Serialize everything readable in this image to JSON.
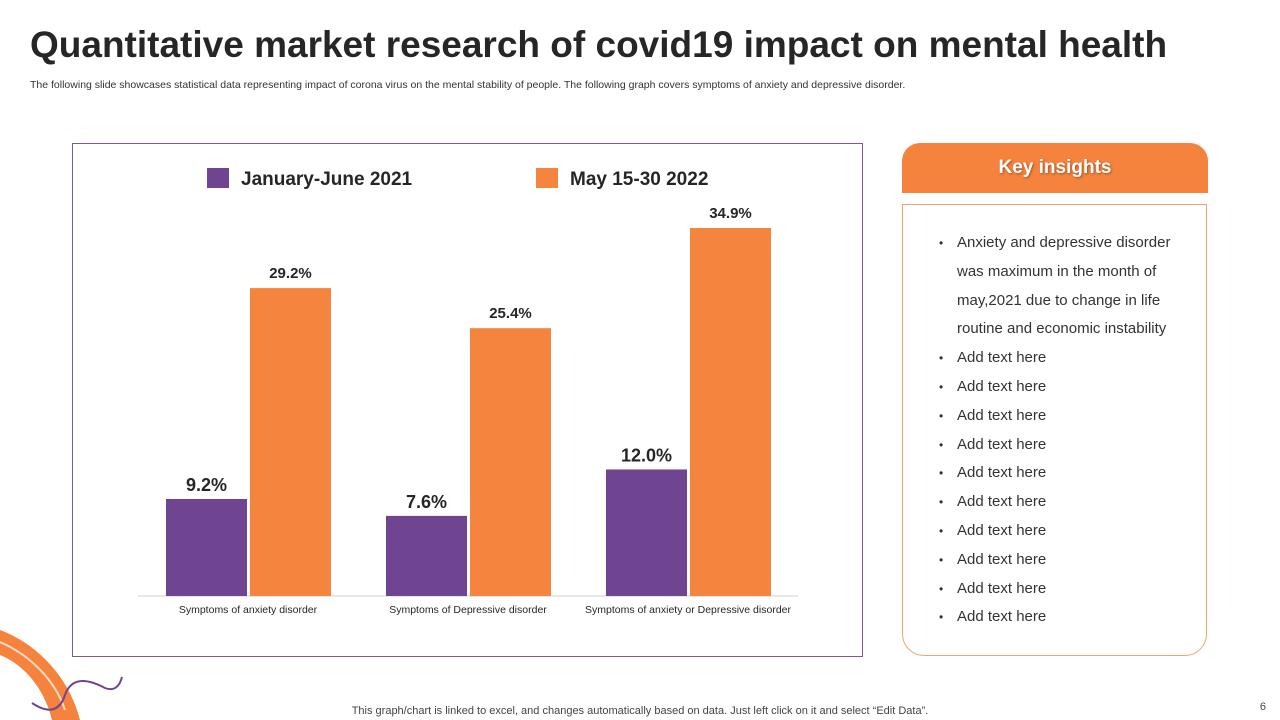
{
  "header": {
    "title": "Quantitative market research of covid19 impact on mental health",
    "subtitle": "The following slide showcases statistical data representing impact of corona virus on the mental stability of people. The following graph covers symptoms of  anxiety and depressive disorder."
  },
  "chart_data": {
    "type": "bar",
    "categories": [
      "Symptoms of anxiety disorder",
      "Symptoms of Depressive disorder",
      "Symptoms of anxiety or Depressive disorder"
    ],
    "series": [
      {
        "name": "January-June 2021",
        "values": [
          9.2,
          7.6,
          12.0
        ],
        "labels": [
          "9.2%",
          "7.6%",
          "12.0%"
        ],
        "color": "#6f4592"
      },
      {
        "name": "May 15-30  2022",
        "values": [
          29.2,
          25.4,
          34.9
        ],
        "labels": [
          "29.2%",
          "25.4%",
          "34.9%"
        ],
        "color": "#f5843f"
      }
    ],
    "ylim": [
      0,
      35
    ],
    "grid": false,
    "legend": "top",
    "unit": "%"
  },
  "insights": {
    "title": "Key insights",
    "items": [
      "Anxiety  and depressive disorder was maximum in the month  of may,2021 due to change in life routine and economic instability",
      "Add text here",
      "Add text here",
      "Add text here",
      "Add text here",
      "Add text here",
      "Add text here",
      "Add text here",
      "Add text here",
      "Add text here",
      "Add text here"
    ]
  },
  "footer": {
    "note": "This graph/chart is linked to excel,  and changes automatically based on data. Just left click on it and select “Edit Data”.",
    "page": "6"
  },
  "colors": {
    "accent": "#f5823d",
    "purple": "#6f4592"
  }
}
